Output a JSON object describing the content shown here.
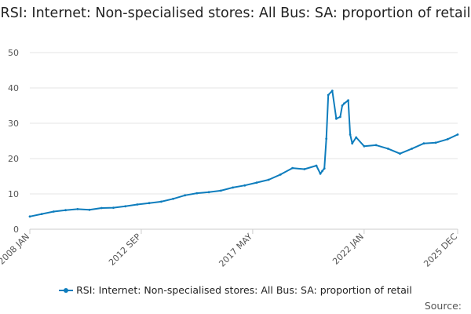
{
  "chart_data": {
    "type": "line",
    "title": "RSI: Internet: Non-specialised stores: All Bus: SA: proportion of retail",
    "xlabel": "",
    "ylabel": "",
    "ylim": [
      0,
      50
    ],
    "yticks": [
      0,
      10,
      20,
      30,
      40,
      50
    ],
    "x_tick_labels": [
      "2008 JAN",
      "2012 SEP",
      "2017 MAY",
      "2022 JAN",
      "2025 DEC"
    ],
    "x_range": [
      "2008 JAN",
      "2025 DEC"
    ],
    "grid": true,
    "legend_position": "bottom",
    "series": [
      {
        "name": "RSI: Internet: Non-specialised stores: All Bus: SA: proportion of retail",
        "color": "#0e7dbd",
        "x": [
          "2008 JAN",
          "2008 JUL",
          "2009 JAN",
          "2009 JUL",
          "2010 JAN",
          "2010 JUL",
          "2011 JAN",
          "2011 JUL",
          "2012 JAN",
          "2012 JUL",
          "2013 JAN",
          "2013 JUL",
          "2014 JAN",
          "2014 JUL",
          "2015 JAN",
          "2015 JUL",
          "2016 JAN",
          "2016 JUL",
          "2017 JAN",
          "2017 JUL",
          "2018 JAN",
          "2018 JUL",
          "2019 JAN",
          "2019 JUL",
          "2020 JAN",
          "2020 MAR",
          "2020 APR",
          "2020 MAY",
          "2020 JUN",
          "2020 JUL",
          "2020 SEP",
          "2020 NOV",
          "2021 JAN",
          "2021 FEB",
          "2021 MAR",
          "2021 MAY",
          "2021 JUN",
          "2021 JUL",
          "2021 SEP",
          "2022 JAN",
          "2022 JUL",
          "2023 JAN",
          "2023 JUL",
          "2024 JAN",
          "2024 JUL",
          "2025 JAN",
          "2025 JUL",
          "2025 DEC"
        ],
        "values": [
          3.6,
          4.3,
          5.0,
          5.4,
          5.7,
          5.5,
          6.0,
          6.1,
          6.5,
          7.0,
          7.4,
          7.8,
          8.6,
          9.6,
          10.2,
          10.5,
          10.9,
          11.8,
          12.4,
          13.2,
          14.0,
          15.5,
          17.3,
          17.0,
          18.0,
          15.7,
          16.5,
          17.2,
          25.6,
          38.0,
          39.2,
          31.3,
          31.8,
          35.0,
          35.6,
          36.5,
          26.8,
          24.3,
          26.0,
          23.5,
          23.8,
          22.8,
          21.4,
          22.8,
          24.3,
          24.5,
          25.5,
          26.8
        ]
      }
    ],
    "source_label": "Source:"
  }
}
